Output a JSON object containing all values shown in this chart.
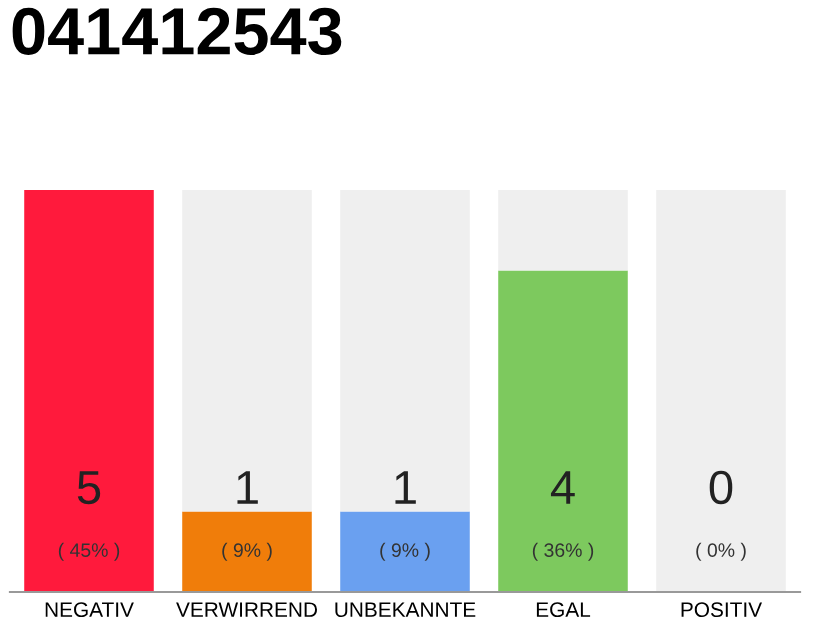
{
  "chart_data": {
    "type": "bar",
    "title": "041412543",
    "categories": [
      "NEGATIV",
      "VERWIRREND",
      "UNBEKANNTE",
      "EGAL",
      "POSITIV"
    ],
    "stacked": true,
    "series": [
      {
        "colors": [
          "#ff1a3c",
          "#f07d0a",
          "#6aa0f0",
          "#7dc95e",
          "#cccccc"
        ],
        "values": [
          45,
          9,
          9,
          36,
          0
        ],
        "value_labels": [
          "( 45% )",
          "( 9% )",
          "( 9% )",
          "( 36% )",
          null
        ]
      },
      {
        "color": "#efefef",
        "values": [
          0,
          36,
          36,
          9,
          45
        ]
      }
    ],
    "annotations": [
      "5",
      "1",
      "1",
      "4",
      "0",
      "( 0% )"
    ],
    "tick_labels": "x"
  }
}
